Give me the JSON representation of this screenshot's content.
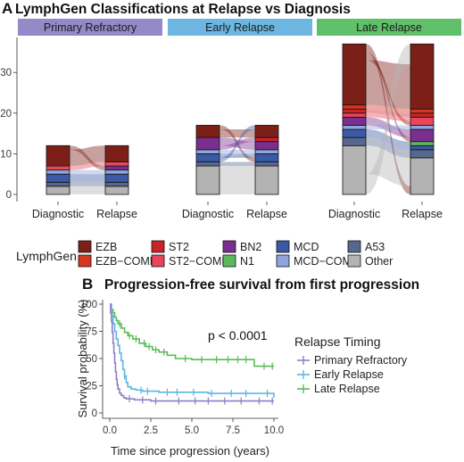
{
  "figure": {
    "panel_a_letter": "A",
    "panel_a_title": "LymphGen Classifications at Relapse vs Diagnosis",
    "panel_b_letter": "B",
    "panel_b_title": "Progression-free survival from first progression"
  },
  "colors": {
    "EZB": "#7b1f17",
    "EZB-COMP": "#d7361f",
    "ST2": "#cc2229",
    "ST2-COMP": "#e8475a",
    "BN2": "#7a2e8e",
    "N1": "#5cb85c",
    "MCD": "#3a5aa5",
    "MCD-COMP": "#8ea4dc",
    "A53": "#56688f",
    "Other": "#b3b3b3",
    "strip_primary": "#9689c8",
    "strip_early": "#6db6e1",
    "strip_late": "#60c069",
    "km_primary": "#8a80c8",
    "km_early": "#5bb6e4",
    "km_late": "#58bd54"
  },
  "chart_data": [
    {
      "type": "alluvial",
      "title": "LymphGen Classifications at Relapse vs Diagnosis",
      "facets": [
        "Primary Refractory",
        "Early Relapse",
        "Late Relapse"
      ],
      "x_categories": [
        "Diagnostic",
        "Relapse"
      ],
      "y_ticks": [
        0,
        10,
        20,
        30
      ],
      "ylim": [
        0,
        38
      ],
      "legend_title": "LymphGen",
      "legend": [
        "EZB",
        "EZB−COMP",
        "ST2",
        "ST2−COMP",
        "BN2",
        "N1",
        "MCD",
        "MCD−COMP",
        "A53",
        "Other"
      ],
      "legend_keys": [
        "EZB",
        "EZB-COMP",
        "ST2",
        "ST2-COMP",
        "BN2",
        "N1",
        "MCD",
        "MCD-COMP",
        "A53",
        "Other"
      ],
      "stacks": [
        {
          "facet": "Primary Refractory",
          "diagnostic": [
            {
              "class": "Other",
              "count": 2
            },
            {
              "class": "A53",
              "count": 1
            },
            {
              "class": "MCD",
              "count": 2
            },
            {
              "class": "MCD-COMP",
              "count": 1
            },
            {
              "class": "BN2",
              "count": 0
            },
            {
              "class": "ST2-COMP",
              "count": 1
            },
            {
              "class": "EZB",
              "count": 5
            }
          ],
          "relapse": [
            {
              "class": "Other",
              "count": 2
            },
            {
              "class": "A53",
              "count": 1
            },
            {
              "class": "MCD",
              "count": 2
            },
            {
              "class": "MCD-COMP",
              "count": 1
            },
            {
              "class": "BN2",
              "count": 1
            },
            {
              "class": "ST2-COMP",
              "count": 1
            },
            {
              "class": "EZB",
              "count": 4
            }
          ]
        },
        {
          "facet": "Early Relapse",
          "diagnostic": [
            {
              "class": "Other",
              "count": 7
            },
            {
              "class": "A53",
              "count": 1
            },
            {
              "class": "MCD",
              "count": 2
            },
            {
              "class": "MCD-COMP",
              "count": 1
            },
            {
              "class": "BN2",
              "count": 3
            },
            {
              "class": "EZB",
              "count": 3
            }
          ],
          "relapse": [
            {
              "class": "Other",
              "count": 7
            },
            {
              "class": "A53",
              "count": 1
            },
            {
              "class": "MCD",
              "count": 2
            },
            {
              "class": "MCD-COMP",
              "count": 1
            },
            {
              "class": "BN2",
              "count": 2
            },
            {
              "class": "ST2",
              "count": 1
            },
            {
              "class": "EZB",
              "count": 3
            }
          ]
        },
        {
          "facet": "Late Relapse",
          "diagnostic": [
            {
              "class": "Other",
              "count": 12
            },
            {
              "class": "A53",
              "count": 2
            },
            {
              "class": "MCD",
              "count": 2
            },
            {
              "class": "MCD-COMP",
              "count": 1
            },
            {
              "class": "BN2",
              "count": 2
            },
            {
              "class": "ST2-COMP",
              "count": 1
            },
            {
              "class": "ST2",
              "count": 1
            },
            {
              "class": "EZB-COMP",
              "count": 1
            },
            {
              "class": "EZB",
              "count": 15
            }
          ],
          "relapse": [
            {
              "class": "Other",
              "count": 9
            },
            {
              "class": "A53",
              "count": 2
            },
            {
              "class": "MCD",
              "count": 1
            },
            {
              "class": "N1",
              "count": 1
            },
            {
              "class": "BN2",
              "count": 3
            },
            {
              "class": "MCD-COMP",
              "count": 1
            },
            {
              "class": "ST2-COMP",
              "count": 2
            },
            {
              "class": "ST2",
              "count": 1
            },
            {
              "class": "EZB-COMP",
              "count": 1
            },
            {
              "class": "EZB",
              "count": 16
            }
          ]
        }
      ],
      "flows": [
        {
          "facet": "Primary Refractory",
          "from": "EZB",
          "to": "EZB",
          "count": 4
        },
        {
          "facet": "Primary Refractory",
          "from": "EZB",
          "to": "BN2",
          "count": 1
        },
        {
          "facet": "Primary Refractory",
          "from": "ST2-COMP",
          "to": "ST2-COMP",
          "count": 1
        },
        {
          "facet": "Primary Refractory",
          "from": "MCD-COMP",
          "to": "MCD-COMP",
          "count": 1
        },
        {
          "facet": "Primary Refractory",
          "from": "MCD",
          "to": "MCD",
          "count": 2
        },
        {
          "facet": "Primary Refractory",
          "from": "A53",
          "to": "A53",
          "count": 1
        },
        {
          "facet": "Primary Refractory",
          "from": "Other",
          "to": "Other",
          "count": 2
        },
        {
          "facet": "Early Relapse",
          "from": "EZB",
          "to": "EZB",
          "count": 2
        },
        {
          "facet": "Early Relapse",
          "from": "EZB",
          "to": "MCD",
          "count": 1
        },
        {
          "facet": "Early Relapse",
          "from": "BN2",
          "to": "ST2",
          "count": 1
        },
        {
          "facet": "Early Relapse",
          "from": "BN2",
          "to": "BN2",
          "count": 2
        },
        {
          "facet": "Early Relapse",
          "from": "MCD-COMP",
          "to": "MCD-COMP",
          "count": 1
        },
        {
          "facet": "Early Relapse",
          "from": "MCD",
          "to": "EZB",
          "count": 1
        },
        {
          "facet": "Early Relapse",
          "from": "MCD",
          "to": "MCD",
          "count": 1
        },
        {
          "facet": "Early Relapse",
          "from": "A53",
          "to": "A53",
          "count": 1
        },
        {
          "facet": "Early Relapse",
          "from": "Other",
          "to": "Other",
          "count": 7
        },
        {
          "facet": "Late Relapse",
          "from": "EZB",
          "to": "EZB",
          "count": 11
        },
        {
          "facet": "Late Relapse",
          "from": "EZB",
          "to": "ST2-COMP",
          "count": 1
        },
        {
          "facet": "Late Relapse",
          "from": "EZB",
          "to": "BN2",
          "count": 1
        },
        {
          "facet": "Late Relapse",
          "from": "EZB",
          "to": "Other",
          "count": 2
        },
        {
          "facet": "Late Relapse",
          "from": "EZB-COMP",
          "to": "EZB-COMP",
          "count": 1
        },
        {
          "facet": "Late Relapse",
          "from": "ST2",
          "to": "ST2",
          "count": 1
        },
        {
          "facet": "Late Relapse",
          "from": "ST2-COMP",
          "to": "ST2-COMP",
          "count": 1
        },
        {
          "facet": "Late Relapse",
          "from": "BN2",
          "to": "BN2",
          "count": 2
        },
        {
          "facet": "Late Relapse",
          "from": "MCD-COMP",
          "to": "MCD-COMP",
          "count": 1
        },
        {
          "facet": "Late Relapse",
          "from": "MCD",
          "to": "MCD",
          "count": 1
        },
        {
          "facet": "Late Relapse",
          "from": "MCD",
          "to": "N1",
          "count": 1
        },
        {
          "facet": "Late Relapse",
          "from": "A53",
          "to": "A53",
          "count": 2
        },
        {
          "facet": "Late Relapse",
          "from": "Other",
          "to": "EZB",
          "count": 5
        },
        {
          "facet": "Late Relapse",
          "from": "Other",
          "to": "Other",
          "count": 7
        }
      ]
    },
    {
      "type": "line",
      "subtype": "kaplan-meier",
      "title": "Progression-free survival from first progression",
      "xlabel": "Time since progression (years)",
      "ylabel": "Survival probability (%)",
      "xlim": [
        0,
        10.3
      ],
      "ylim": [
        0,
        100
      ],
      "x_ticks": [
        0.0,
        2.5,
        5.0,
        7.5,
        10.0
      ],
      "x_tick_labels": [
        "0.0",
        "2.5",
        "5.0",
        "7.5",
        "10.0"
      ],
      "y_ticks": [
        0,
        25,
        50,
        75,
        100
      ],
      "annotation": "p < 0.0001",
      "legend_title": "Relapse Timing",
      "series": [
        {
          "name": "Primary Refractory",
          "points": [
            [
              0,
              100
            ],
            [
              0.05,
              92
            ],
            [
              0.1,
              84
            ],
            [
              0.15,
              74
            ],
            [
              0.2,
              64
            ],
            [
              0.25,
              55
            ],
            [
              0.3,
              46
            ],
            [
              0.35,
              38
            ],
            [
              0.4,
              31
            ],
            [
              0.45,
              26
            ],
            [
              0.5,
              22
            ],
            [
              0.6,
              18
            ],
            [
              0.7,
              16
            ],
            [
              0.85,
              14
            ],
            [
              1.0,
              13
            ],
            [
              1.5,
              12
            ],
            [
              2.5,
              11
            ],
            [
              10.0,
              11
            ]
          ],
          "censor_x": [
            1.2,
            2.0,
            2.8,
            4.2,
            5.2,
            6.0,
            7.0,
            8.0,
            9.1,
            9.9
          ]
        },
        {
          "name": "Early Relapse",
          "points": [
            [
              0,
              100
            ],
            [
              0.1,
              90
            ],
            [
              0.2,
              82
            ],
            [
              0.3,
              75
            ],
            [
              0.4,
              68
            ],
            [
              0.5,
              62
            ],
            [
              0.6,
              55
            ],
            [
              0.7,
              48
            ],
            [
              0.8,
              40
            ],
            [
              0.9,
              34
            ],
            [
              1.0,
              28
            ],
            [
              1.1,
              24
            ],
            [
              1.3,
              22
            ],
            [
              1.6,
              21
            ],
            [
              2.0,
              20
            ],
            [
              3.0,
              19
            ],
            [
              6.0,
              18
            ],
            [
              10.0,
              14
            ]
          ],
          "censor_x": [
            0.9,
            1.9,
            2.3,
            3.5,
            4.1,
            5.1,
            6.2,
            7.4,
            8.3,
            9.6
          ]
        },
        {
          "name": "Late Relapse",
          "points": [
            [
              0,
              100
            ],
            [
              0.1,
              95
            ],
            [
              0.2,
              92
            ],
            [
              0.3,
              88
            ],
            [
              0.4,
              85
            ],
            [
              0.5,
              82
            ],
            [
              0.7,
              78
            ],
            [
              0.9,
              74
            ],
            [
              1.1,
              71
            ],
            [
              1.4,
              68
            ],
            [
              1.8,
              64
            ],
            [
              2.2,
              61
            ],
            [
              2.6,
              58
            ],
            [
              3.0,
              56
            ],
            [
              3.5,
              53
            ],
            [
              4.0,
              50
            ],
            [
              5.0,
              49
            ],
            [
              8.7,
              49
            ],
            [
              8.8,
              43
            ],
            [
              10.0,
              43
            ]
          ],
          "censor_x": [
            0.6,
            1.2,
            1.6,
            2.1,
            2.4,
            2.8,
            3.3,
            4.6,
            5.6,
            6.5,
            7.2,
            7.8,
            8.3,
            9.4,
            9.9
          ]
        }
      ]
    }
  ]
}
